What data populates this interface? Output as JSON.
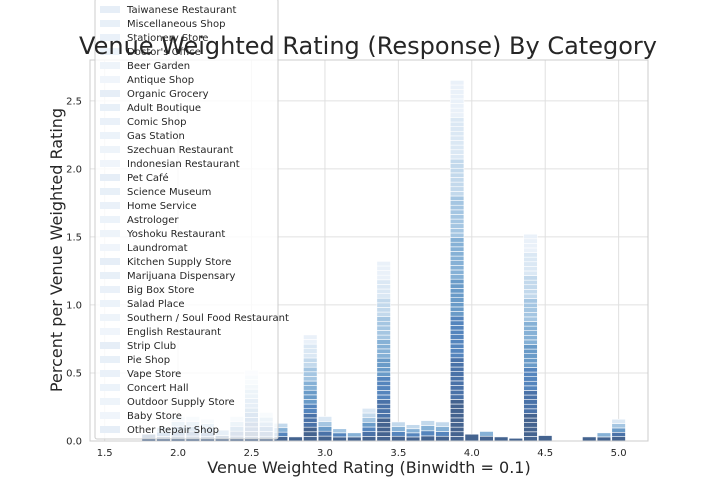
{
  "chart_data": {
    "type": "bar",
    "title": "Venue Weighted Rating (Response) By Category",
    "xlabel": "Venue Weighted Rating (Binwidth = 0.1)",
    "ylabel": "Percent per Venue Weighted Rating",
    "xlim": [
      1.4,
      5.2
    ],
    "ylim": [
      0,
      2.8
    ],
    "x_ticks": [
      "1.5",
      "2.0",
      "2.5",
      "3.0",
      "3.5",
      "4.0",
      "4.5",
      "5.0"
    ],
    "y_ticks": [
      "0.0",
      "0.5",
      "1.0",
      "1.5",
      "2.0",
      "2.5"
    ],
    "grid": true,
    "stacked": true,
    "legend_position": "top-left",
    "legend": [
      "Taiwanese Restaurant",
      "Miscellaneous Shop",
      "Stationery Store",
      "Doctor's Office",
      "Beer Garden",
      "Antique Shop",
      "Organic Grocery",
      "Adult Boutique",
      "Comic Shop",
      "Gas Station",
      "Szechuan Restaurant",
      "Indonesian Restaurant",
      "Pet Café",
      "Science Museum",
      "Home Service",
      "Astrologer",
      "Yoshoku Restaurant",
      "Laundromat",
      "Kitchen Supply Store",
      "Marijuana Dispensary",
      "Big Box Store",
      "Salad Place",
      "Southern / Soul Food Restaurant",
      "English Restaurant",
      "Strip Club",
      "Pie Shop",
      "Vape Store",
      "Concert Hall",
      "Outdoor Supply Store",
      "Baby Store",
      "Other Repair Shop"
    ],
    "bins": [
      {
        "x": 1.8,
        "total": 0.05
      },
      {
        "x": 1.9,
        "total": 0.1
      },
      {
        "x": 2.0,
        "total": 0.18
      },
      {
        "x": 2.1,
        "total": 0.18
      },
      {
        "x": 2.2,
        "total": 0.16
      },
      {
        "x": 2.3,
        "total": 0.08
      },
      {
        "x": 2.4,
        "total": 0.18
      },
      {
        "x": 2.5,
        "total": 0.52
      },
      {
        "x": 2.6,
        "total": 0.21
      },
      {
        "x": 2.7,
        "total": 0.13
      },
      {
        "x": 2.8,
        "total": 0.03
      },
      {
        "x": 2.9,
        "total": 0.78
      },
      {
        "x": 3.0,
        "total": 0.18
      },
      {
        "x": 3.1,
        "total": 0.09
      },
      {
        "x": 3.2,
        "total": 0.06
      },
      {
        "x": 3.3,
        "total": 0.24
      },
      {
        "x": 3.4,
        "total": 1.32
      },
      {
        "x": 3.5,
        "total": 0.14
      },
      {
        "x": 3.6,
        "total": 0.12
      },
      {
        "x": 3.7,
        "total": 0.15
      },
      {
        "x": 3.8,
        "total": 0.14
      },
      {
        "x": 3.9,
        "total": 2.65
      },
      {
        "x": 4.0,
        "total": 0.05
      },
      {
        "x": 4.1,
        "total": 0.07
      },
      {
        "x": 4.2,
        "total": 0.03
      },
      {
        "x": 4.3,
        "total": 0.02
      },
      {
        "x": 4.4,
        "total": 1.52
      },
      {
        "x": 4.5,
        "total": 0.04
      },
      {
        "x": 4.8,
        "total": 0.03
      },
      {
        "x": 4.9,
        "total": 0.06
      },
      {
        "x": 5.0,
        "total": 0.16
      }
    ]
  }
}
